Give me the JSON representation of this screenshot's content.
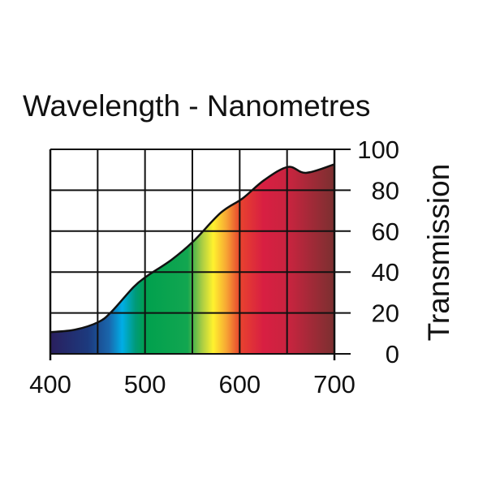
{
  "chart_data": {
    "type": "area",
    "title": "Wavelength - Nanometres",
    "xlabel": "",
    "ylabel": "Transmission",
    "xlim": [
      400,
      700
    ],
    "ylim": [
      0,
      100
    ],
    "x_ticks": [
      400,
      500,
      600,
      700
    ],
    "y_ticks": [
      0,
      20,
      40,
      60,
      80,
      100
    ],
    "grid": true,
    "fill": "visible spectrum gradient",
    "x": [
      400,
      426,
      451,
      465,
      488,
      502,
      528,
      551,
      580,
      603,
      626,
      651,
      670,
      700
    ],
    "values": [
      10.6,
      11.8,
      15.6,
      20.8,
      32.7,
      38,
      46,
      55,
      69,
      76,
      85,
      91.4,
      88.5,
      92.7
    ],
    "spectrum_colors": [
      {
        "nm": 400,
        "color": "#2a1f5e"
      },
      {
        "nm": 440,
        "color": "#1c3a7e"
      },
      {
        "nm": 462,
        "color": "#1a66ac"
      },
      {
        "nm": 476,
        "color": "#00aee6"
      },
      {
        "nm": 490,
        "color": "#009a78"
      },
      {
        "nm": 500,
        "color": "#00a04e"
      },
      {
        "nm": 545,
        "color": "#12a650"
      },
      {
        "nm": 560,
        "color": "#a8cc44"
      },
      {
        "nm": 572,
        "color": "#fff22e"
      },
      {
        "nm": 586,
        "color": "#f7a634"
      },
      {
        "nm": 600,
        "color": "#e8432e"
      },
      {
        "nm": 625,
        "color": "#d81f42"
      },
      {
        "nm": 652,
        "color": "#c8243f"
      },
      {
        "nm": 700,
        "color": "#7a3030"
      }
    ]
  }
}
